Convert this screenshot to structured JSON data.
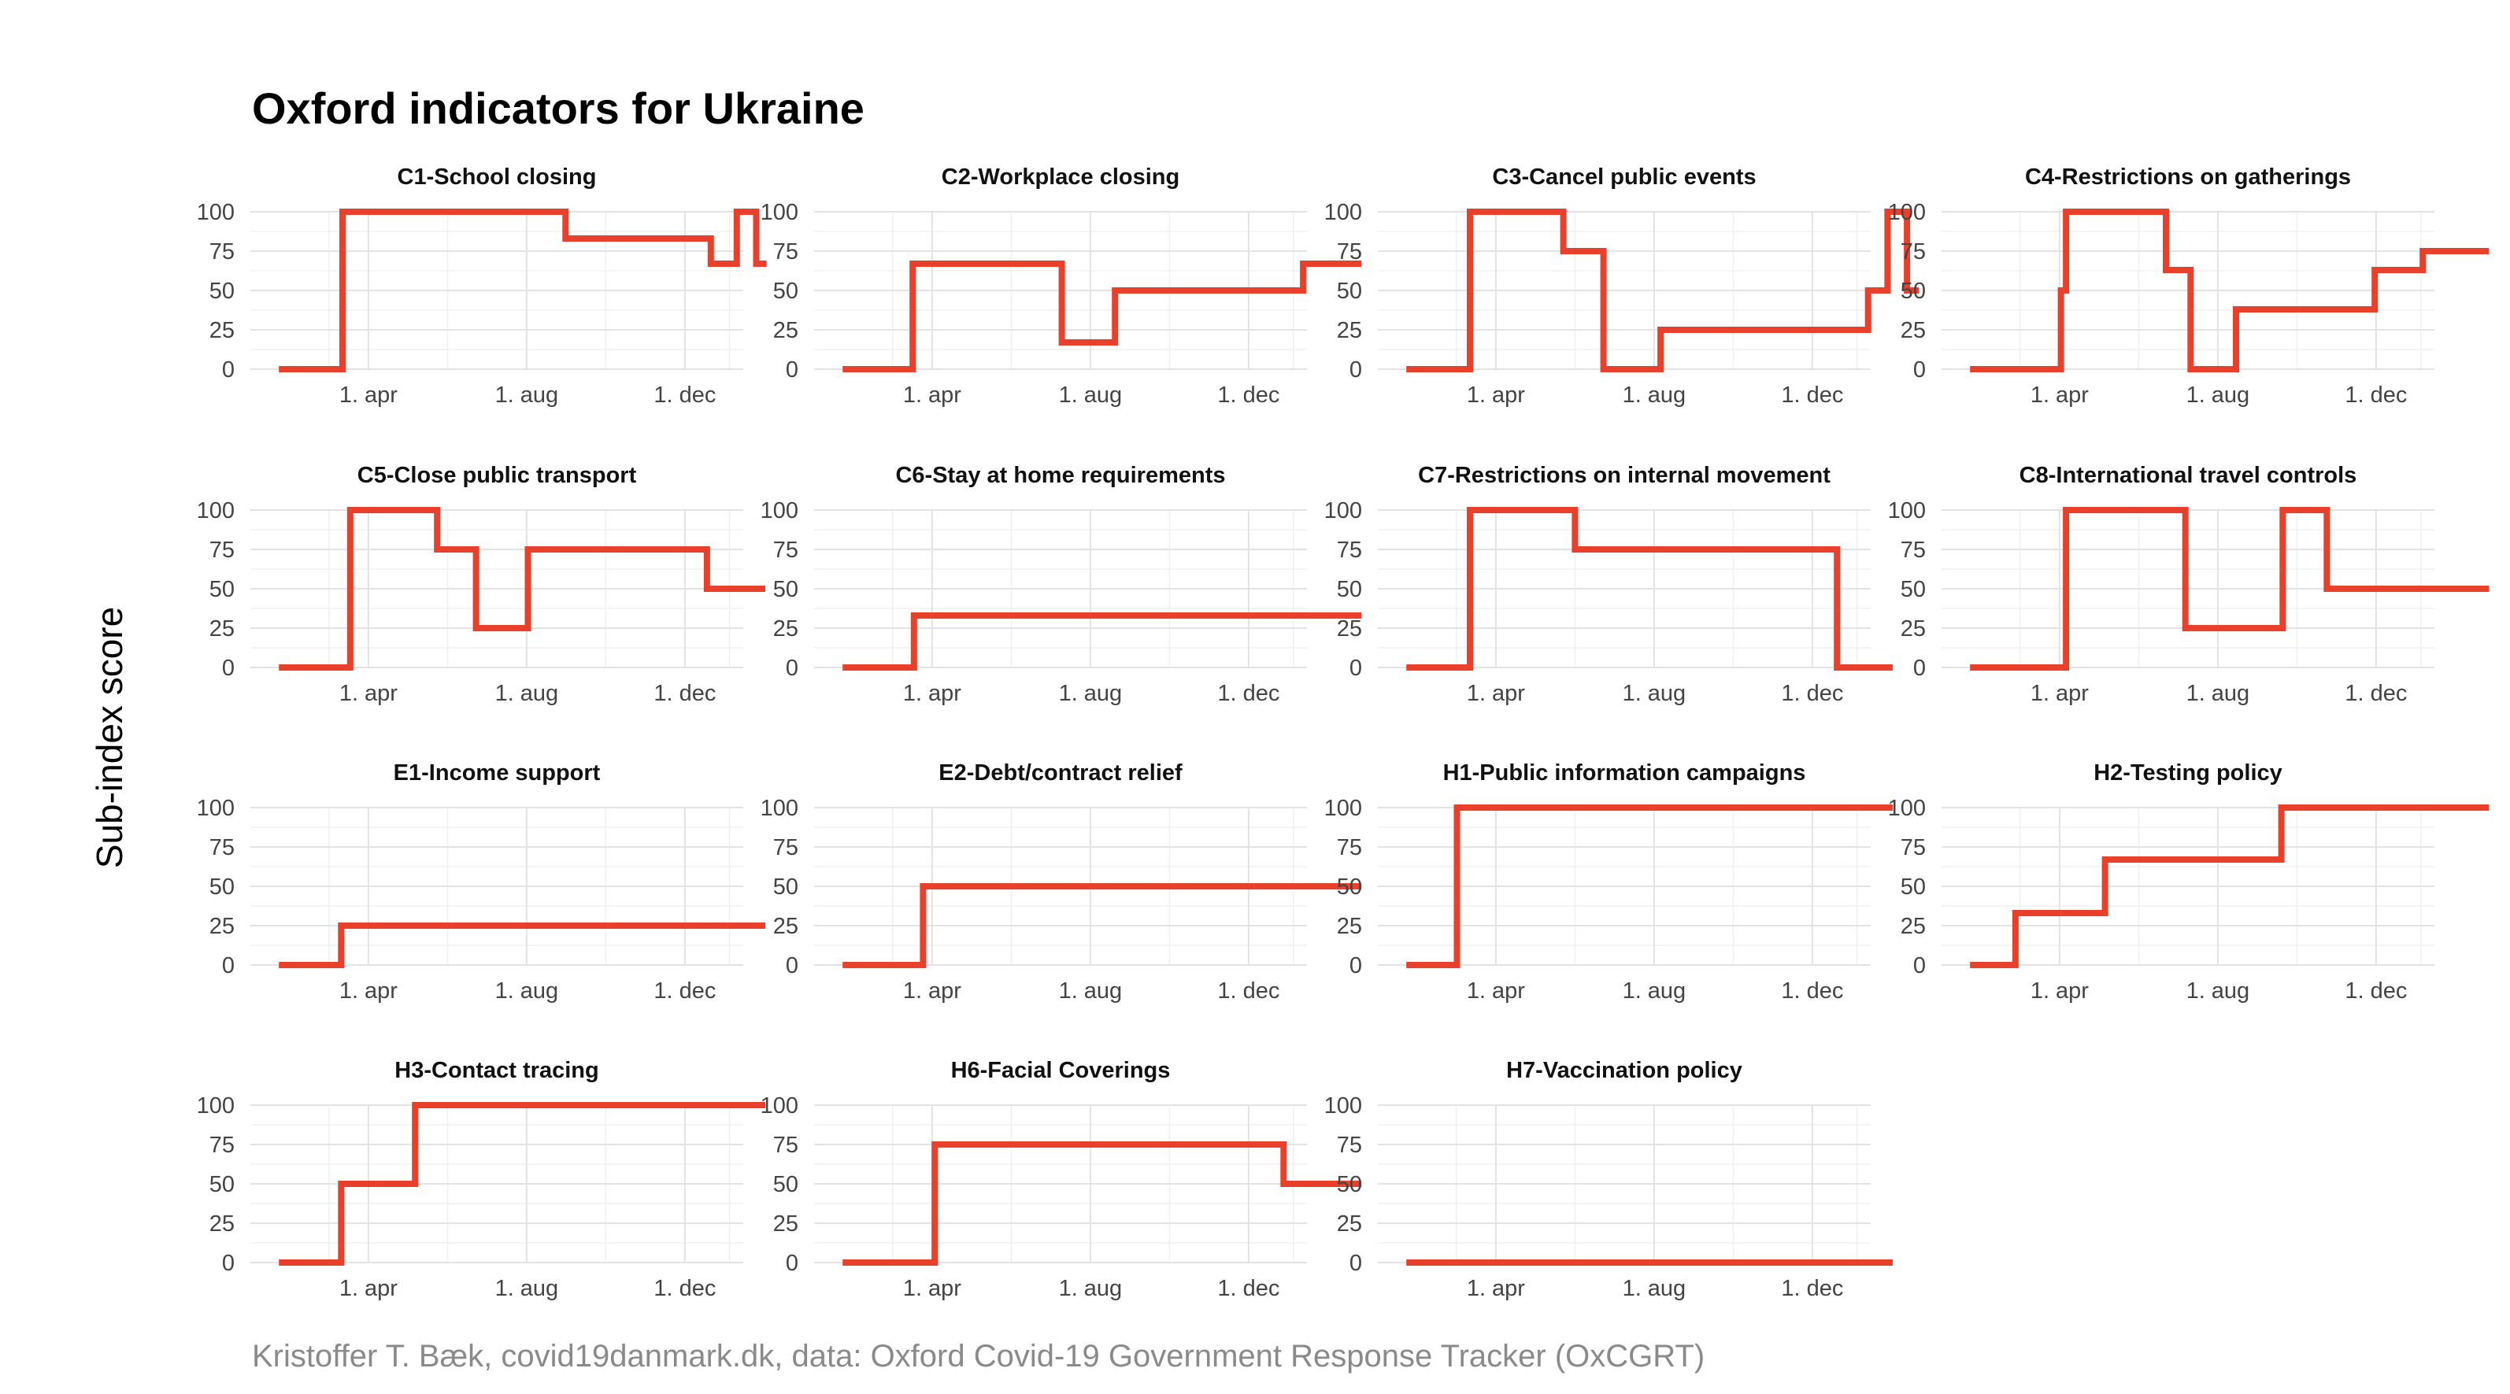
{
  "title": "Oxford indicators for Ukraine",
  "ylabel": "Sub-index score",
  "caption": "Kristoffer T. Bæk, covid19danmark.dk, data: Oxford Covid-19 Government Response Tracker (OxCGRT)",
  "colors": {
    "series": "#e8402a",
    "grid": "#e3e3e3",
    "caption": "#8a8a8a"
  },
  "chart_data": {
    "type": "line",
    "step": true,
    "x_unit": "days since 1 Jan 2020",
    "xlim": [
      0,
      380
    ],
    "ylim": [
      0,
      100
    ],
    "yticks": [
      0,
      25,
      50,
      75,
      100
    ],
    "xticks": [
      {
        "label": "1. apr",
        "value": 91
      },
      {
        "label": "1. aug",
        "value": 213
      },
      {
        "label": "1. dec",
        "value": 335
      }
    ],
    "panels": [
      {
        "title": "C1-School closing",
        "points": [
          [
            22,
            0
          ],
          [
            71,
            0
          ],
          [
            71,
            100
          ],
          [
            243,
            100
          ],
          [
            243,
            83
          ],
          [
            355,
            83
          ],
          [
            355,
            67
          ],
          [
            375,
            67
          ],
          [
            375,
            100
          ],
          [
            390,
            100
          ],
          [
            390,
            67
          ],
          [
            398,
            67
          ]
        ]
      },
      {
        "title": "C2-Workplace closing",
        "points": [
          [
            22,
            0
          ],
          [
            76,
            0
          ],
          [
            76,
            67
          ],
          [
            191,
            67
          ],
          [
            191,
            17
          ],
          [
            232,
            17
          ],
          [
            232,
            50
          ],
          [
            377,
            50
          ],
          [
            377,
            67
          ],
          [
            422,
            67
          ]
        ]
      },
      {
        "title": "C3-Cancel public events",
        "points": [
          [
            22,
            0
          ],
          [
            71,
            0
          ],
          [
            71,
            100
          ],
          [
            143,
            100
          ],
          [
            143,
            75
          ],
          [
            174,
            75
          ],
          [
            174,
            0
          ],
          [
            218,
            0
          ],
          [
            218,
            25
          ],
          [
            378,
            25
          ],
          [
            378,
            50
          ],
          [
            393,
            50
          ],
          [
            393,
            100
          ],
          [
            408,
            100
          ],
          [
            408,
            50
          ],
          [
            417,
            50
          ]
        ]
      },
      {
        "title": "C4-Restrictions on gatherings",
        "points": [
          [
            22,
            0
          ],
          [
            92,
            0
          ],
          [
            92,
            50
          ],
          [
            96,
            50
          ],
          [
            96,
            100
          ],
          [
            173,
            100
          ],
          [
            173,
            63
          ],
          [
            192,
            63
          ],
          [
            192,
            0
          ],
          [
            227,
            0
          ],
          [
            227,
            38
          ],
          [
            334,
            38
          ],
          [
            334,
            63
          ],
          [
            371,
            63
          ],
          [
            371,
            75
          ],
          [
            422,
            75
          ]
        ]
      },
      {
        "title": "C5-Close public transport",
        "points": [
          [
            22,
            0
          ],
          [
            77,
            0
          ],
          [
            77,
            100
          ],
          [
            144,
            100
          ],
          [
            144,
            75
          ],
          [
            174,
            75
          ],
          [
            174,
            25
          ],
          [
            214,
            25
          ],
          [
            214,
            75
          ],
          [
            352,
            75
          ],
          [
            352,
            50
          ],
          [
            397,
            50
          ]
        ]
      },
      {
        "title": "C6-Stay at home requirements",
        "points": [
          [
            22,
            0
          ],
          [
            77,
            0
          ],
          [
            77,
            33
          ],
          [
            422,
            33
          ]
        ]
      },
      {
        "title": "C7-Restrictions on internal movement",
        "points": [
          [
            22,
            0
          ],
          [
            71,
            0
          ],
          [
            71,
            100
          ],
          [
            152,
            100
          ],
          [
            152,
            75
          ],
          [
            354,
            75
          ],
          [
            354,
            0
          ],
          [
            397,
            0
          ]
        ]
      },
      {
        "title": "C8-International travel controls",
        "points": [
          [
            22,
            0
          ],
          [
            96,
            0
          ],
          [
            96,
            100
          ],
          [
            188,
            100
          ],
          [
            188,
            25
          ],
          [
            263,
            25
          ],
          [
            263,
            100
          ],
          [
            297,
            100
          ],
          [
            297,
            50
          ],
          [
            422,
            50
          ]
        ]
      },
      {
        "title": "E1-Income support",
        "points": [
          [
            22,
            0
          ],
          [
            70,
            0
          ],
          [
            70,
            25
          ],
          [
            397,
            25
          ]
        ]
      },
      {
        "title": "E2-Debt/contract relief",
        "points": [
          [
            22,
            0
          ],
          [
            84,
            0
          ],
          [
            84,
            50
          ],
          [
            422,
            50
          ]
        ]
      },
      {
        "title": "H1-Public information campaigns",
        "points": [
          [
            22,
            0
          ],
          [
            61,
            0
          ],
          [
            61,
            100
          ],
          [
            397,
            100
          ]
        ]
      },
      {
        "title": "H2-Testing policy",
        "points": [
          [
            22,
            0
          ],
          [
            57,
            0
          ],
          [
            57,
            33
          ],
          [
            126,
            33
          ],
          [
            126,
            67
          ],
          [
            262,
            67
          ],
          [
            262,
            100
          ],
          [
            422,
            100
          ]
        ]
      },
      {
        "title": "H3-Contact tracing",
        "points": [
          [
            22,
            0
          ],
          [
            70,
            0
          ],
          [
            70,
            50
          ],
          [
            127,
            50
          ],
          [
            127,
            100
          ],
          [
            397,
            100
          ]
        ]
      },
      {
        "title": "H6-Facial Coverings",
        "points": [
          [
            22,
            0
          ],
          [
            93,
            0
          ],
          [
            93,
            75
          ],
          [
            362,
            75
          ],
          [
            362,
            50
          ],
          [
            422,
            50
          ]
        ]
      },
      {
        "title": "H7-Vaccination policy",
        "points": [
          [
            22,
            0
          ],
          [
            397,
            0
          ]
        ]
      }
    ]
  }
}
